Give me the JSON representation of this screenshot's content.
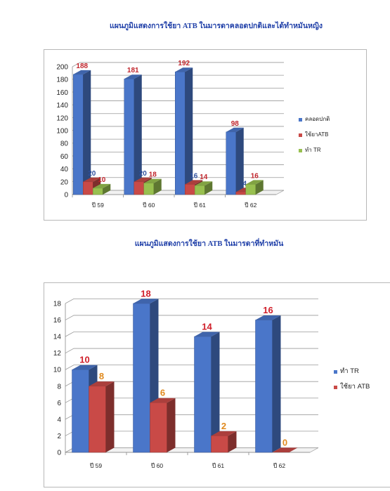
{
  "page": {
    "title1": "แผนภูมิแสดงการใช้ยา ATB ในมารดาคลอดปกติและได้ทำหมันหญิง",
    "title2": "แผนภูมิแสดงการใช้ยา ATB ในมารดาที่ทำหมัน"
  },
  "chart_data": [
    {
      "type": "bar",
      "categories": [
        "ปี 59",
        "ปี 60",
        "ปี 61",
        "ปี 62"
      ],
      "series": [
        {
          "name": "คลอดปกติ",
          "values": [
            188,
            181,
            192,
            98
          ],
          "color": "#4a76c9"
        },
        {
          "name": "ใช้ยาATB",
          "values": [
            20,
            20,
            16,
            4
          ],
          "color": "#c94a47"
        },
        {
          "name": "ทำ TR",
          "values": [
            10,
            18,
            14,
            16
          ],
          "color": "#98c04f"
        }
      ],
      "ylim": [
        0,
        200
      ],
      "yticks": [
        0,
        20,
        40,
        60,
        80,
        100,
        120,
        140,
        160,
        180,
        200
      ],
      "grid": true,
      "legend_position": "right",
      "data_label_colors": [
        "#c0242b",
        "#2d4f9e",
        "#c0242b"
      ]
    },
    {
      "type": "bar",
      "categories": [
        "ปี 59",
        "ปี 60",
        "ปี 61",
        "ปี 62"
      ],
      "series": [
        {
          "name": "ทำ TR",
          "values": [
            10,
            18,
            14,
            16
          ],
          "color": "#4a76c9"
        },
        {
          "name": "ใช้ยา ATB",
          "values": [
            8,
            6,
            2,
            0
          ],
          "color": "#c94a47"
        }
      ],
      "ylim": [
        0,
        18
      ],
      "yticks": [
        0,
        2,
        4,
        6,
        8,
        10,
        12,
        14,
        16,
        18
      ],
      "grid": true,
      "legend_position": "right",
      "data_label_colors": [
        "#d0202b",
        "#e08a1e"
      ]
    }
  ]
}
